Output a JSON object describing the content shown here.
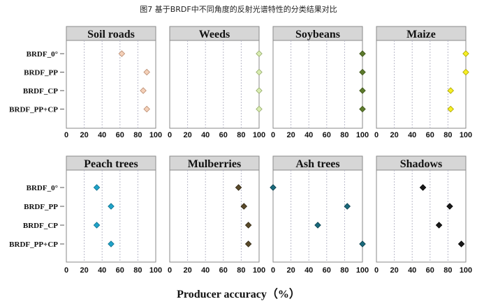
{
  "figure_title": "图7  基于BRDF中不同角度的反射光谱特性的分类结果对比",
  "chart_data": {
    "type": "scatter",
    "xlabel": "Producer accuracy（%）",
    "xlim": [
      0,
      100
    ],
    "xticks": [
      0,
      20,
      40,
      60,
      80,
      100
    ],
    "grid": "vertical dotted",
    "categories": [
      "BRDF_0°",
      "BRDF_PP",
      "BRDF_CP",
      "BRDF_PP+CP"
    ],
    "panels": [
      {
        "title": "Soil roads",
        "values": [
          62,
          90,
          86,
          90
        ],
        "color": "#f4d0b8",
        "stroke": "#b98a6e"
      },
      {
        "title": "Weeds",
        "values": [
          100,
          100,
          100,
          100
        ],
        "color": "#d8ecb0",
        "stroke": "#93a86a"
      },
      {
        "title": "Soybeans",
        "values": [
          100,
          100,
          100,
          100
        ],
        "color": "#5c7a2c",
        "stroke": "#3c5218"
      },
      {
        "title": "Maize",
        "values": [
          100,
          100,
          83,
          83
        ],
        "color": "#f7f024",
        "stroke": "#a8a000"
      },
      {
        "title": "Peach trees",
        "values": [
          34,
          50,
          34,
          50
        ],
        "color": "#1fa3c9",
        "stroke": "#0e6f8c"
      },
      {
        "title": "Mulberries",
        "values": [
          77,
          83,
          88,
          88
        ],
        "color": "#5a4a2a",
        "stroke": "#2e2410"
      },
      {
        "title": "Ash trees",
        "values": [
          0,
          83,
          50,
          100
        ],
        "color": "#1a6a7c",
        "stroke": "#0b3e4a"
      },
      {
        "title": "Shadows",
        "values": [
          52,
          82,
          70,
          95
        ],
        "color": "#1a1a1a",
        "stroke": "#000000"
      }
    ]
  }
}
